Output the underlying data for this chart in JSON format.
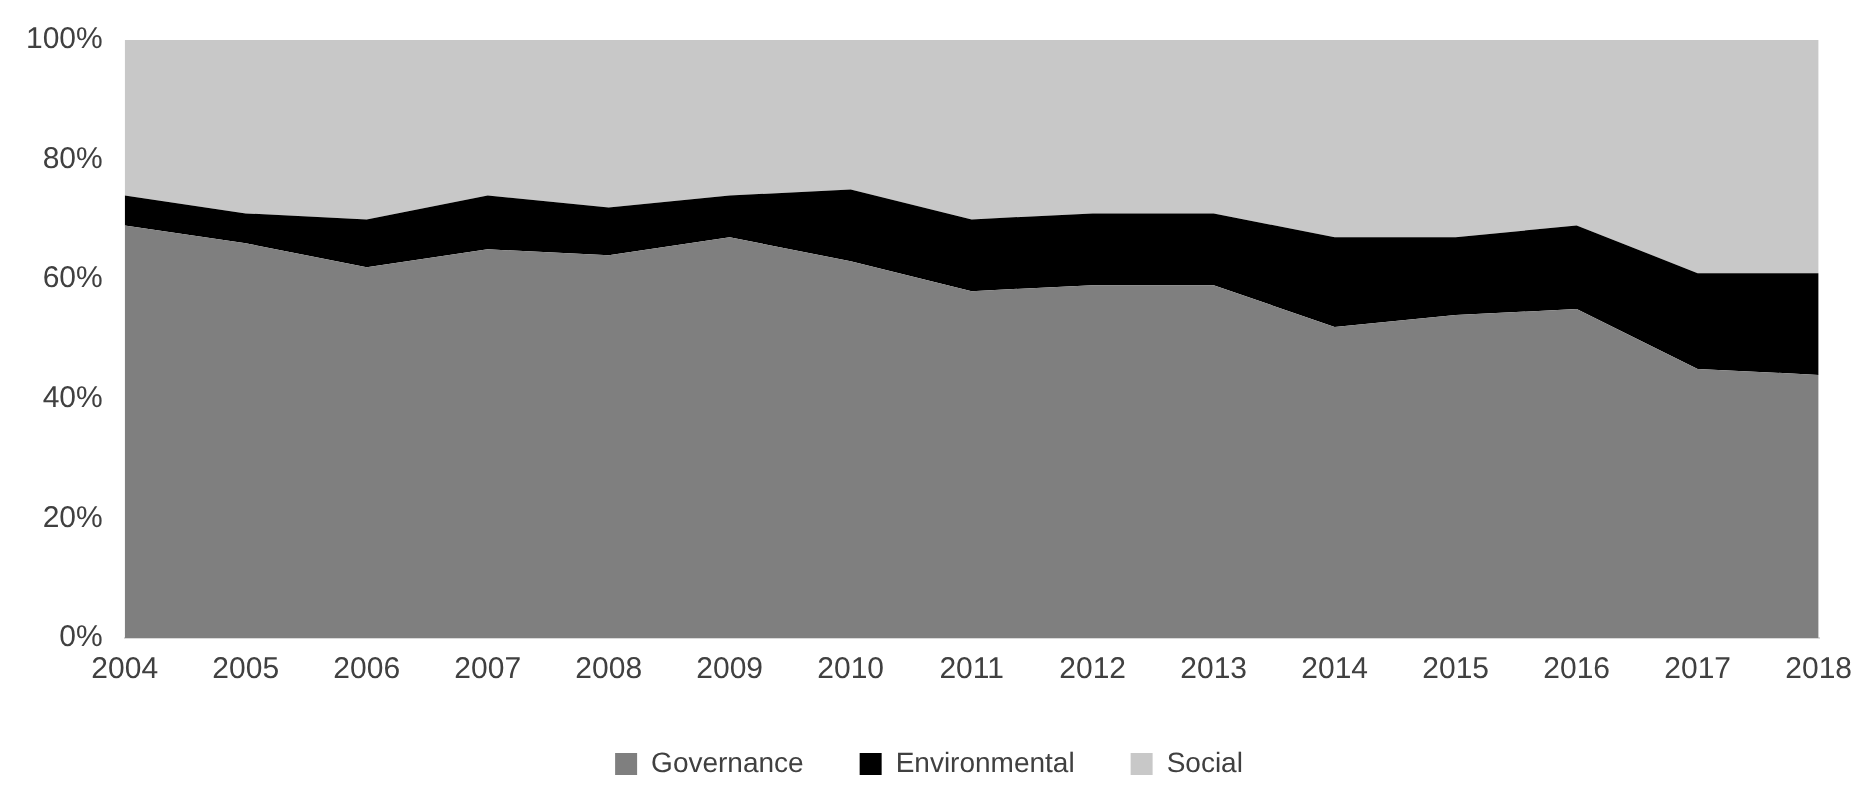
{
  "chart_data": {
    "type": "area",
    "stacked": true,
    "categories": [
      "2004",
      "2005",
      "2006",
      "2007",
      "2008",
      "2009",
      "2010",
      "2011",
      "2012",
      "2013",
      "2014",
      "2015",
      "2016",
      "2017",
      "2018"
    ],
    "series": [
      {
        "name": "Governance",
        "color": "#7f7f7f",
        "values": [
          69,
          66,
          62,
          65,
          64,
          67,
          63,
          58,
          59,
          59,
          52,
          54,
          55,
          45,
          44
        ]
      },
      {
        "name": "Environmental",
        "color": "#000000",
        "values": [
          5,
          5,
          8,
          9,
          8,
          7,
          12,
          12,
          12,
          12,
          15,
          13,
          14,
          16,
          17
        ]
      },
      {
        "name": "Social",
        "color": "#c8c8c8",
        "values": [
          26,
          29,
          30,
          26,
          28,
          26,
          25,
          30,
          29,
          29,
          33,
          33,
          31,
          39,
          39
        ]
      }
    ],
    "ylim": [
      0,
      100
    ],
    "yticks": [
      {
        "value": 0,
        "label": "0%"
      },
      {
        "value": 20,
        "label": "20%"
      },
      {
        "value": 40,
        "label": "40%"
      },
      {
        "value": 60,
        "label": "60%"
      },
      {
        "value": 80,
        "label": "80%"
      },
      {
        "value": 100,
        "label": "100%"
      }
    ],
    "grid": false,
    "legend": "bottom"
  }
}
